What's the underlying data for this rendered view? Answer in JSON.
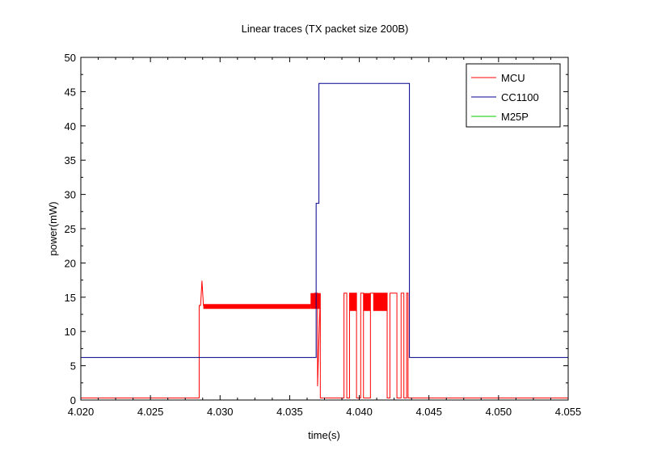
{
  "chart_data": {
    "type": "line",
    "title": "Linear traces (TX packet size 200B)",
    "xlabel": "time(s)",
    "ylabel": "power(mW)",
    "xlim": [
      4.02,
      4.055
    ],
    "ylim": [
      0,
      50
    ],
    "x_ticks": [
      4.02,
      4.025,
      4.03,
      4.035,
      4.04,
      4.045,
      4.05,
      4.055
    ],
    "x_tick_labels": [
      "4.020",
      "4.025",
      "4.030",
      "4.035",
      "4.040",
      "4.045",
      "4.050",
      "4.055"
    ],
    "y_ticks": [
      0,
      5,
      10,
      15,
      20,
      25,
      30,
      35,
      40,
      45,
      50
    ],
    "y_tick_labels": [
      "0",
      "5",
      "10",
      "15",
      "20",
      "25",
      "30",
      "35",
      "40",
      "45",
      "50"
    ],
    "grid": false,
    "legend_position": "top-right",
    "series": [
      {
        "name": "MCU",
        "color": "#ff0000",
        "x": [
          4.02,
          4.0285,
          4.0285,
          4.0285,
          4.0286,
          4.0287,
          4.0288,
          4.0288,
          4.0365,
          4.0368,
          4.037,
          4.037,
          4.0372,
          4.0372,
          4.0389,
          4.0389,
          4.0391,
          4.0391,
          4.0393,
          4.0393,
          4.0398,
          4.0398,
          4.0401,
          4.0401,
          4.0403,
          4.0403,
          4.0408,
          4.0408,
          4.042,
          4.042,
          4.0422,
          4.0422,
          4.0427,
          4.0427,
          4.043,
          4.043,
          4.0432,
          4.0432,
          4.0434,
          4.0434,
          4.0435,
          4.0435,
          4.055
        ],
        "y": [
          0.3,
          0.3,
          2.5,
          13.8,
          13.8,
          17.4,
          14.0,
          13.8,
          13.8,
          15.6,
          15.6,
          2.0,
          15.6,
          0.3,
          0.3,
          15.6,
          15.6,
          0.3,
          0.3,
          15.6,
          15.6,
          0.3,
          0.3,
          15.6,
          15.6,
          0.3,
          0.3,
          15.6,
          15.6,
          0.3,
          0.3,
          15.6,
          15.6,
          0.3,
          0.3,
          15.6,
          15.6,
          0.3,
          0.3,
          15.6,
          15.6,
          0.3,
          0.3
        ]
      },
      {
        "name": "CC1100",
        "color": "#00008b",
        "x": [
          4.02,
          4.0369,
          4.0369,
          4.0371,
          4.0371,
          4.0431,
          4.0431,
          4.0436,
          4.0436,
          4.055
        ],
        "y": [
          6.2,
          6.2,
          28.7,
          28.7,
          46.2,
          46.2,
          46.2,
          46.2,
          6.2,
          6.2
        ]
      },
      {
        "name": "M25P",
        "color": "#00cc00",
        "x": [],
        "y": []
      }
    ],
    "mcu_noise_bands": [
      {
        "x0": 4.0288,
        "x1": 4.0365,
        "ymin": 13.3,
        "ymax": 14.0
      },
      {
        "x0": 4.0365,
        "x1": 4.0372,
        "ymin": 13.3,
        "ymax": 15.6
      },
      {
        "x0": 4.0393,
        "x1": 4.0398,
        "ymin": 13.0,
        "ymax": 15.6
      },
      {
        "x0": 4.0403,
        "x1": 4.0408,
        "ymin": 13.0,
        "ymax": 15.6
      },
      {
        "x0": 4.041,
        "x1": 4.042,
        "ymin": 13.0,
        "ymax": 15.6
      }
    ]
  }
}
